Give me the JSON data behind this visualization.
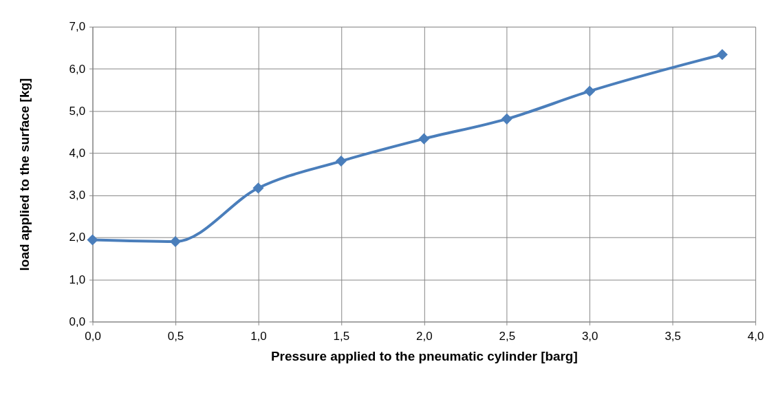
{
  "chart_data": {
    "type": "line",
    "xlabel": "Pressure applied to the pneumatic cylinder [barg]",
    "ylabel": "load applied to the surface [kg]",
    "x": [
      0.0,
      0.5,
      1.0,
      1.5,
      2.0,
      2.5,
      3.0,
      3.8
    ],
    "series": [
      {
        "color": "#4a7ebb",
        "values": [
          1.94,
          1.9,
          3.17,
          3.81,
          4.34,
          4.81,
          5.47,
          6.34
        ]
      }
    ],
    "xlim": [
      0,
      4
    ],
    "xticks": [
      {
        "value": 0,
        "label": "0,0"
      },
      {
        "value": 0.5,
        "label": "0,5"
      },
      {
        "value": 1,
        "label": "1,0"
      },
      {
        "value": 1.5,
        "label": "1,5"
      },
      {
        "value": 2,
        "label": "2,0"
      },
      {
        "value": 2.5,
        "label": "2,5"
      },
      {
        "value": 3,
        "label": "3,0"
      },
      {
        "value": 3.5,
        "label": "3,5"
      },
      {
        "value": 4,
        "label": "4,0"
      }
    ],
    "ylim": [
      0,
      7
    ],
    "yticks": [
      {
        "value": 0,
        "label": "0,0"
      },
      {
        "value": 1,
        "label": "1,0"
      },
      {
        "value": 2,
        "label": "2,0"
      },
      {
        "value": 3,
        "label": "3,0"
      },
      {
        "value": 4,
        "label": "4,0"
      },
      {
        "value": 5,
        "label": "5,0"
      },
      {
        "value": 6,
        "label": "6,0"
      },
      {
        "value": 7,
        "label": "7,0"
      }
    ],
    "grid": true,
    "marker": "diamond",
    "line_style": "solid"
  }
}
